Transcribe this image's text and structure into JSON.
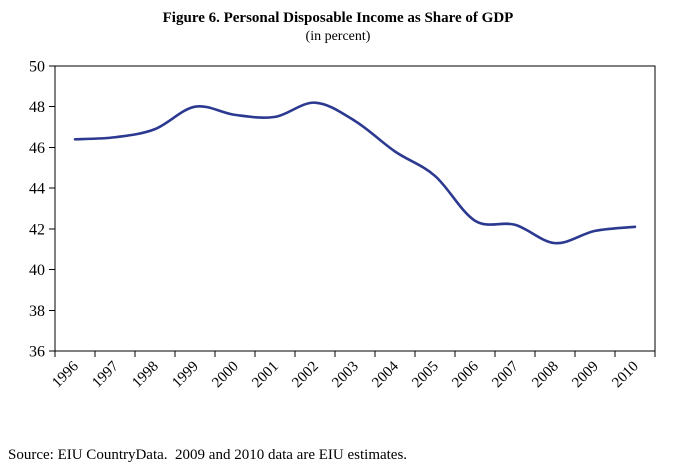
{
  "title": "Figure 6. Personal Disposable Income as Share of GDP",
  "subtitle": "(in percent)",
  "source_note": "Source: EIU CountryData.  2009 and 2010 data are EIU estimates.",
  "chart_data": {
    "type": "line",
    "title": "Figure 6. Personal Disposable Income as Share of GDP",
    "subtitle": "(in percent)",
    "categories": [
      "1996",
      "1997",
      "1998",
      "1999",
      "2000",
      "2001",
      "2002",
      "2003",
      "2004",
      "2005",
      "2006",
      "2007",
      "2008",
      "2009",
      "2010"
    ],
    "series": [
      {
        "name": "Personal Disposable Income as Share of GDP",
        "values": [
          46.4,
          46.5,
          46.9,
          48.0,
          47.6,
          47.5,
          48.2,
          47.3,
          45.8,
          44.6,
          42.4,
          42.2,
          41.3,
          41.9,
          42.1
        ]
      }
    ],
    "xlabel": "",
    "ylabel": "",
    "ylim": [
      36,
      50
    ],
    "ytick_step": 2,
    "grid": false,
    "legend": "none",
    "line_color": "#2B3990",
    "axis_color": "#000000"
  }
}
